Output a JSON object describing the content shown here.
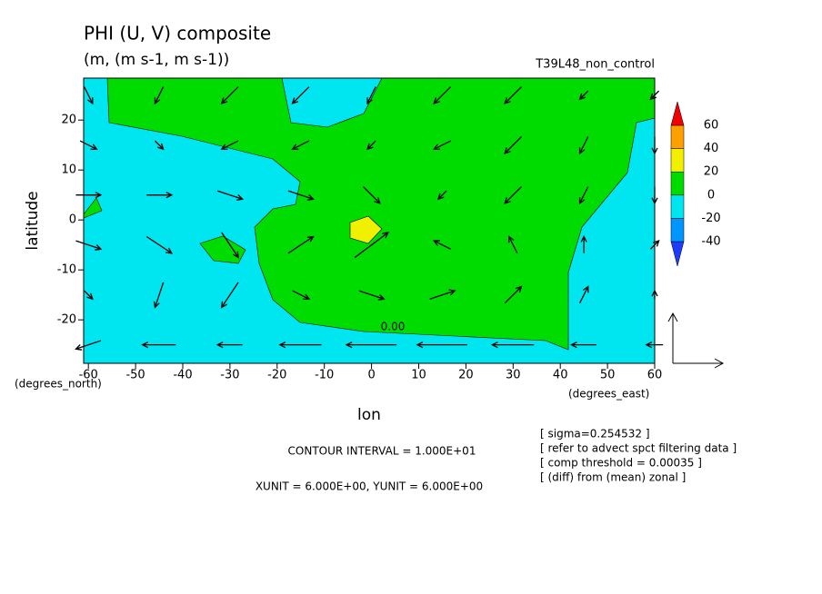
{
  "chart_data": {
    "type": "vector-contour",
    "title": "PHI (U, V) composite",
    "subtitle": "(m, (m s-1, m s-1))",
    "run": "T39L48_non_control",
    "x_label": "lon",
    "y_label": "latitude",
    "x_unit": "(degrees_east)",
    "y_unit": "(degrees_north)",
    "xlim": [
      -61,
      60
    ],
    "ylim": [
      -28.7,
      28.4
    ],
    "xticks": [
      -60,
      -50,
      -40,
      -30,
      -20,
      -10,
      0,
      10,
      20,
      30,
      40,
      50,
      60
    ],
    "yticks": [
      -20,
      -10,
      0,
      10,
      20
    ],
    "contour_label": "0.00",
    "notes": [
      "CONTOUR INTERVAL = 1.000E+01",
      "XUNIT = 6.000E+00, YUNIT = 6.000E+00"
    ],
    "info": [
      "[ sigma=0.254532 ]",
      "[ refer to advect spct filtering data ]",
      "[ comp threshold = 0.00035 ]",
      "[ (diff) from (mean) zonal ]"
    ],
    "colorbar": {
      "levels": [
        -40,
        -20,
        0,
        20,
        40,
        60
      ],
      "colors": [
        "#1e3cff",
        "#0096ff",
        "#00e6f0",
        "#00dc00",
        "#f0f000",
        "#ffa000",
        "#f00000"
      ]
    },
    "vectors": {
      "lon": [
        -60,
        -45,
        -30,
        -15,
        0,
        15,
        30,
        45,
        60
      ],
      "lat": [
        25,
        15,
        5,
        -5,
        -15,
        -25
      ],
      "u": [
        [
          1,
          -1,
          -2,
          -2,
          -1,
          -2,
          -2,
          -1,
          -1
        ],
        [
          2,
          1,
          -2,
          -2,
          -1,
          -2,
          -2,
          -1,
          0
        ],
        [
          3,
          3,
          3,
          3,
          2,
          -1,
          -2,
          -1,
          0
        ],
        [
          3,
          3,
          2,
          3,
          4,
          -2,
          -1,
          0,
          1
        ],
        [
          1,
          -1,
          -2,
          2,
          3,
          3,
          2,
          1,
          0
        ],
        [
          -3,
          -4,
          -3,
          -5,
          -6,
          -6,
          -5,
          -3,
          -2
        ]
      ],
      "v": [
        [
          -2,
          -2,
          -2,
          -2,
          -2,
          -2,
          -2,
          -1,
          -1
        ],
        [
          -1,
          -1,
          -1,
          -1,
          -1,
          -1,
          -2,
          -2,
          -2
        ],
        [
          0,
          0,
          -1,
          -1,
          -2,
          -1,
          -2,
          -2,
          -2
        ],
        [
          -1,
          -2,
          -3,
          2,
          3,
          1,
          2,
          2,
          1
        ],
        [
          -1,
          -3,
          -3,
          -1,
          -1,
          1,
          2,
          2,
          1
        ],
        [
          -1,
          0,
          0,
          0,
          0,
          0,
          0,
          0,
          0
        ]
      ]
    }
  }
}
